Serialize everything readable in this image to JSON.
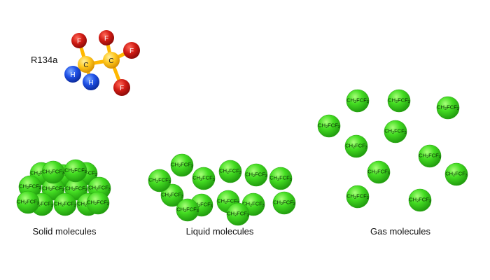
{
  "molecule_model": {
    "name": "R134a",
    "atom_labels": {
      "carbon": "C",
      "fluorine": "F",
      "hydrogen": "H"
    }
  },
  "states": {
    "solid": {
      "caption": "Solid molecules",
      "molecule_count": 14
    },
    "liquid": {
      "caption": "Liquid molecules",
      "molecule_count": 13
    },
    "gas": {
      "caption": "Gas molecules",
      "molecule_count": 11
    }
  },
  "molecule_formula": {
    "prefix": "CH",
    "sub1": "2",
    "middle": "FCF",
    "sub2": "3"
  },
  "colors": {
    "sphere_fill": "#3cd21e",
    "sphere_edge": "#2aa514",
    "fluorine": "#c31414",
    "carbon": "#ffc81e",
    "hydrogen": "#1e50e6",
    "bond": "#ffb800"
  }
}
